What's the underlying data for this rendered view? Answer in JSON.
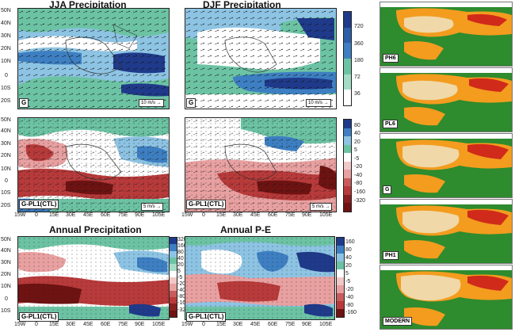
{
  "titles": {
    "jja": "JJA Precipitation",
    "djf": "DJF Precipitation",
    "annual": "Annual Precipitation",
    "annual_pe": "Annual P-E"
  },
  "panel_labels": {
    "jja_top": "G",
    "djf_top": "G",
    "jja_mid": "G-PL1(CTL)",
    "djf_mid": "G-PL1(CTL)",
    "annual": "G-PL1(CTL)",
    "annual_pe": "G-PL1(CTL)"
  },
  "vector_keys": {
    "top_left": "10 m/s →",
    "top_right": "10 m/s →",
    "mid_left": "5 m/s →",
    "mid_right": "5 m/s →"
  },
  "lat_ticks": [
    "50N",
    "40N",
    "30N",
    "20N",
    "10N",
    "0",
    "10S",
    "20S"
  ],
  "lon_ticks": [
    "15W",
    "0",
    "15E",
    "30E",
    "45E",
    "60E",
    "75E",
    "90E",
    "105E"
  ],
  "colorbars": {
    "top": [
      "720",
      "360",
      "180",
      "72",
      "36"
    ],
    "mid": [
      "80",
      "40",
      "20",
      "5",
      "-5",
      "-20",
      "-40",
      "-80",
      "-160",
      "-320"
    ],
    "annual": [
      "320",
      "160",
      "80",
      "40",
      "20",
      "5",
      "-5",
      "-20",
      "-40",
      "-80",
      "-160",
      "-320"
    ],
    "annual_pe": [
      "160",
      "80",
      "40",
      "20",
      "5",
      "-5",
      "-20",
      "-40",
      "-80",
      "-160"
    ]
  },
  "colors": {
    "dark_blue": "#1f3a8a",
    "blue": "#3d7fc2",
    "light_blue": "#8dc3e3",
    "teal": "#6cc3a4",
    "white": "#ffffff",
    "pink": "#e8a0a0",
    "red": "#b83a3a",
    "dark_red": "#6e1212",
    "veg_green": "#2e8b2e",
    "veg_orange": "#f39c1e",
    "veg_red": "#d02a1a",
    "veg_desert": "#f0d8a8"
  },
  "right_panels": [
    {
      "label": "PH6"
    },
    {
      "label": "PL6"
    },
    {
      "label": "G"
    },
    {
      "label": "PH1"
    },
    {
      "label": "MODERN"
    }
  ]
}
